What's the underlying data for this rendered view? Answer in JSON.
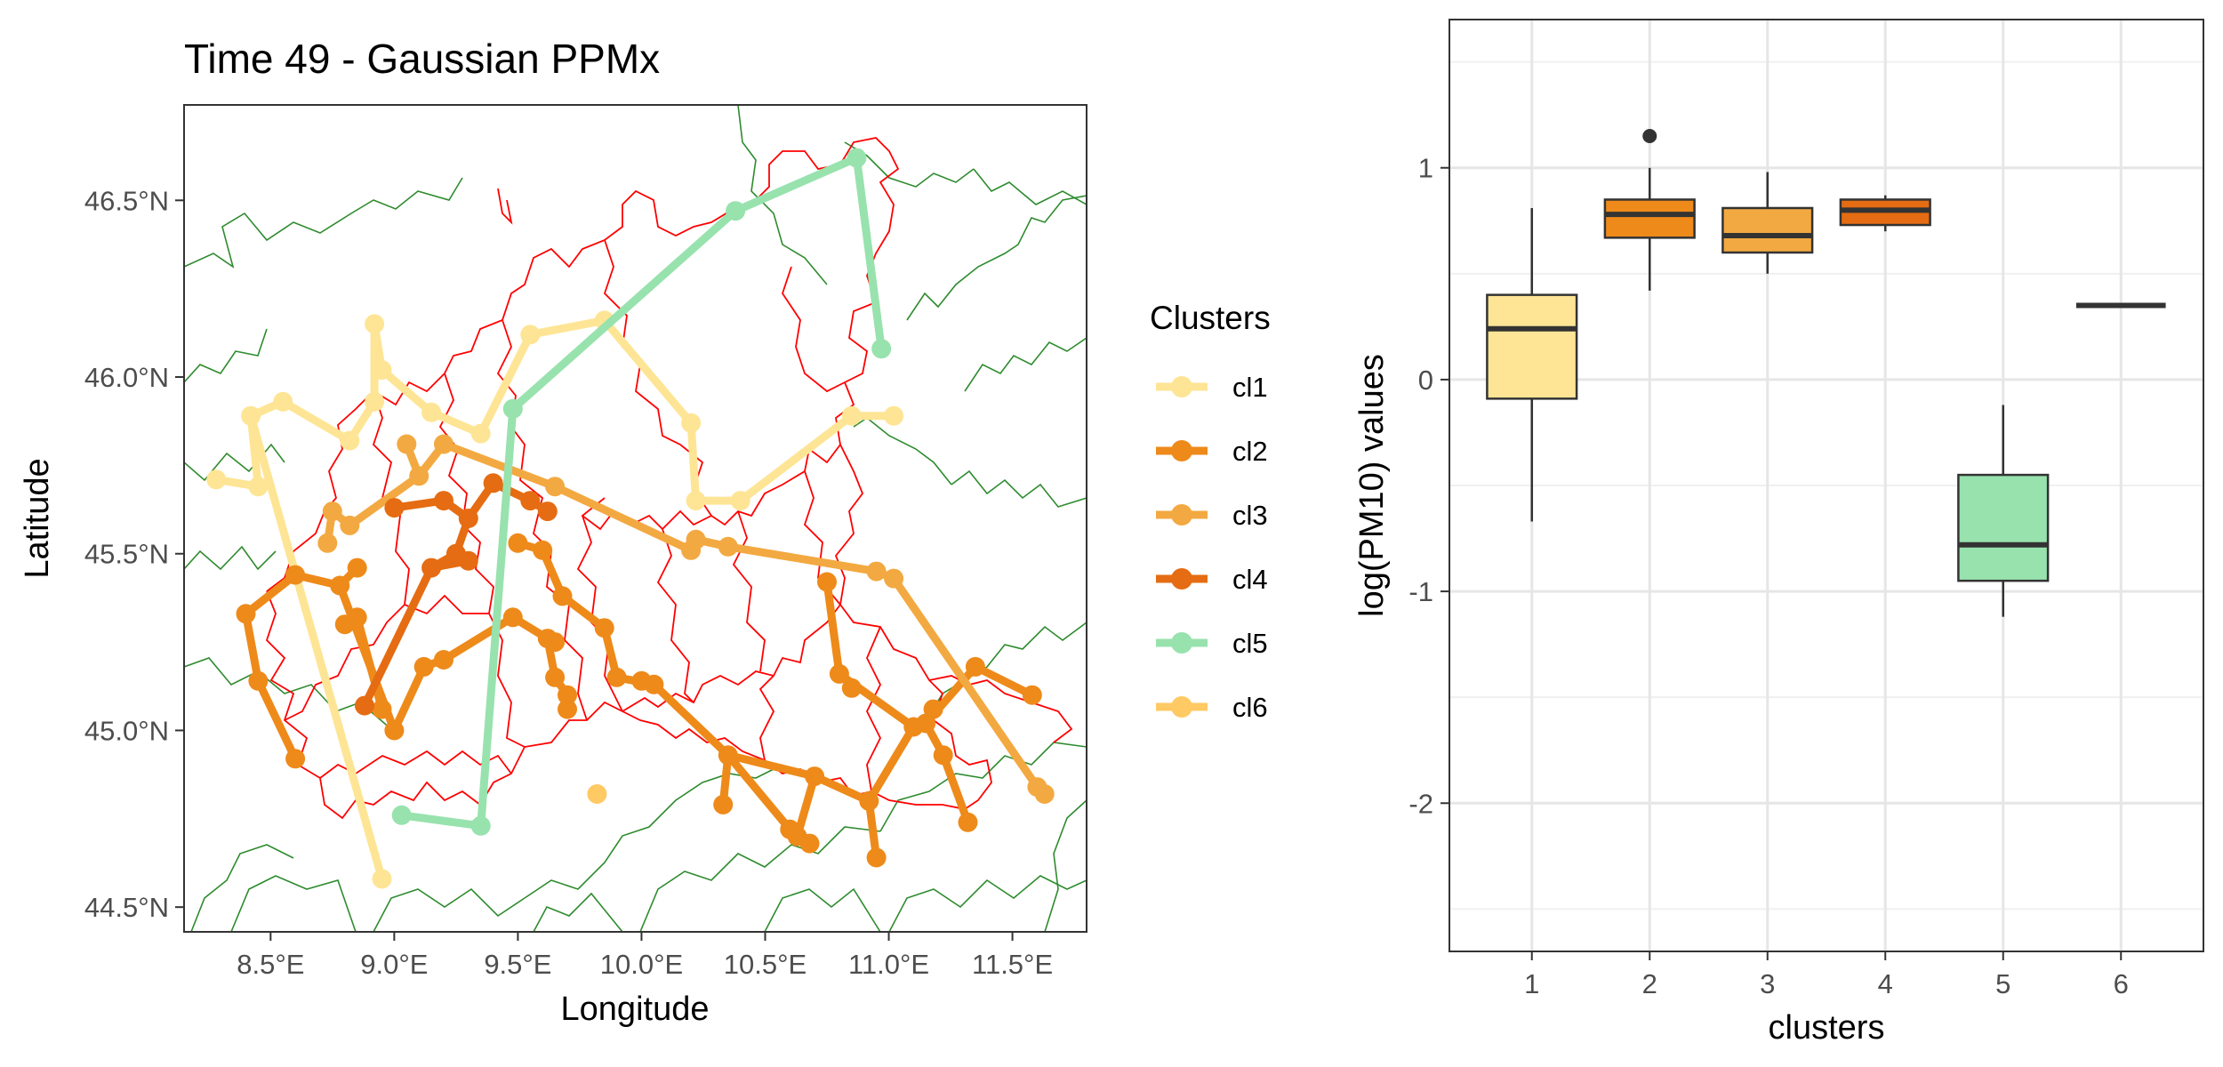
{
  "chart_data": [
    {
      "type": "scatter",
      "title": "Time 49 - Gaussian PPMx",
      "xlabel": "Longitude",
      "ylabel": "Latitude",
      "xlim": [
        8.15,
        11.8
      ],
      "ylim": [
        44.43,
        46.77
      ],
      "x_ticks": [
        8.5,
        9.0,
        9.5,
        10.0,
        10.5,
        11.0,
        11.5
      ],
      "x_tick_labels": [
        "8.5°E",
        "9.0°E",
        "9.5°E",
        "10.0°E",
        "10.5°E",
        "11.0°E",
        "11.5°E"
      ],
      "y_ticks": [
        44.5,
        45.0,
        45.5,
        46.0,
        46.5
      ],
      "y_tick_labels": [
        "44.5°N",
        "45.0°N",
        "45.5°N",
        "46.0°N",
        "46.5°N"
      ],
      "grid": false,
      "legend": {
        "title": "Clusters",
        "position": "right",
        "entries": [
          {
            "label": "cl1",
            "color": "#FEE595"
          },
          {
            "label": "cl2",
            "color": "#EE8A1A"
          },
          {
            "label": "cl3",
            "color": "#F3A941"
          },
          {
            "label": "cl4",
            "color": "#E56C12"
          },
          {
            "label": "cl5",
            "color": "#98E2AE"
          },
          {
            "label": "cl6",
            "color": "#FFC964"
          }
        ]
      },
      "series": [
        {
          "name": "cl1",
          "color": "#FEE595",
          "points": [
            [
              8.28,
              45.71
            ],
            [
              8.42,
              45.89
            ],
            [
              8.45,
              45.69
            ],
            [
              8.55,
              45.93
            ],
            [
              8.82,
              45.82
            ],
            [
              8.92,
              45.93
            ],
            [
              8.92,
              46.15
            ],
            [
              8.95,
              46.02
            ],
            [
              9.15,
              45.9
            ],
            [
              9.35,
              45.84
            ],
            [
              9.55,
              46.12
            ],
            [
              9.85,
              46.16
            ],
            [
              10.2,
              45.87
            ],
            [
              10.22,
              45.65
            ],
            [
              10.4,
              45.65
            ],
            [
              10.85,
              45.89
            ],
            [
              11.02,
              45.89
            ],
            [
              8.95,
              44.58
            ]
          ],
          "paths": [
            [
              [
                8.28,
                45.71
              ],
              [
                8.45,
                45.69
              ],
              [
                8.42,
                45.89
              ],
              [
                8.95,
                44.58
              ]
            ],
            [
              [
                8.42,
                45.89
              ],
              [
                8.55,
                45.93
              ],
              [
                8.82,
                45.82
              ],
              [
                8.92,
                45.93
              ],
              [
                8.92,
                46.15
              ],
              [
                8.95,
                46.02
              ],
              [
                9.15,
                45.9
              ],
              [
                9.35,
                45.84
              ],
              [
                9.55,
                46.12
              ],
              [
                9.85,
                46.16
              ],
              [
                10.2,
                45.87
              ],
              [
                10.22,
                45.65
              ],
              [
                10.4,
                45.65
              ],
              [
                10.85,
                45.89
              ],
              [
                11.02,
                45.89
              ]
            ]
          ]
        },
        {
          "name": "cl2",
          "color": "#EE8A1A",
          "points": [
            [
              8.4,
              45.33
            ],
            [
              8.45,
              45.14
            ],
            [
              8.6,
              44.92
            ],
            [
              8.6,
              45.44
            ],
            [
              8.78,
              45.41
            ],
            [
              8.85,
              45.46
            ],
            [
              8.8,
              45.3
            ],
            [
              8.85,
              45.32
            ],
            [
              8.95,
              45.06
            ],
            [
              9.0,
              45.0
            ],
            [
              9.12,
              45.18
            ],
            [
              9.2,
              45.2
            ],
            [
              9.48,
              45.32
            ],
            [
              9.65,
              45.25
            ],
            [
              9.65,
              45.15
            ],
            [
              9.7,
              45.1
            ],
            [
              9.7,
              45.06
            ],
            [
              9.62,
              45.26
            ],
            [
              9.5,
              45.53
            ],
            [
              9.6,
              45.51
            ],
            [
              9.68,
              45.38
            ],
            [
              9.85,
              45.29
            ],
            [
              9.9,
              45.15
            ],
            [
              10.0,
              45.14
            ],
            [
              10.05,
              45.13
            ],
            [
              10.35,
              44.93
            ],
            [
              10.33,
              44.79
            ],
            [
              10.6,
              44.72
            ],
            [
              10.7,
              44.87
            ],
            [
              10.63,
              44.7
            ],
            [
              10.68,
              44.68
            ],
            [
              10.92,
              44.8
            ],
            [
              10.95,
              44.64
            ],
            [
              11.1,
              45.01
            ],
            [
              11.15,
              45.02
            ],
            [
              11.18,
              45.06
            ],
            [
              11.22,
              44.93
            ],
            [
              11.32,
              44.74
            ],
            [
              11.35,
              45.18
            ],
            [
              11.58,
              45.1
            ],
            [
              10.75,
              45.42
            ],
            [
              10.8,
              45.16
            ],
            [
              10.85,
              45.12
            ]
          ],
          "paths": [
            [
              [
                8.4,
                45.33
              ],
              [
                8.45,
                45.14
              ],
              [
                8.6,
                44.92
              ]
            ],
            [
              [
                8.4,
                45.33
              ],
              [
                8.6,
                45.44
              ],
              [
                8.78,
                45.41
              ],
              [
                8.85,
                45.46
              ]
            ],
            [
              [
                8.8,
                45.3
              ],
              [
                8.85,
                45.32
              ],
              [
                8.95,
                45.06
              ]
            ],
            [
              [
                8.78,
                45.41
              ],
              [
                9.0,
                45.0
              ],
              [
                9.12,
                45.18
              ],
              [
                9.2,
                45.2
              ],
              [
                9.48,
                45.32
              ],
              [
                9.62,
                45.26
              ],
              [
                9.65,
                45.15
              ],
              [
                9.7,
                45.1
              ],
              [
                9.7,
                45.06
              ]
            ],
            [
              [
                9.5,
                45.53
              ],
              [
                9.6,
                45.51
              ],
              [
                9.68,
                45.38
              ],
              [
                9.85,
                45.29
              ],
              [
                9.9,
                45.15
              ],
              [
                10.05,
                45.13
              ],
              [
                10.35,
                44.93
              ],
              [
                10.6,
                44.72
              ]
            ],
            [
              [
                10.35,
                44.93
              ],
              [
                10.33,
                44.79
              ]
            ],
            [
              [
                10.35,
                44.93
              ],
              [
                10.7,
                44.87
              ],
              [
                10.63,
                44.7
              ]
            ],
            [
              [
                10.7,
                44.87
              ],
              [
                10.92,
                44.8
              ],
              [
                10.95,
                44.64
              ]
            ],
            [
              [
                10.92,
                44.8
              ],
              [
                11.1,
                45.01
              ],
              [
                11.15,
                45.02
              ],
              [
                11.22,
                44.93
              ],
              [
                11.32,
                44.74
              ]
            ],
            [
              [
                11.15,
                45.02
              ],
              [
                11.35,
                45.18
              ],
              [
                11.58,
                45.1
              ]
            ],
            [
              [
                10.75,
                45.42
              ],
              [
                10.8,
                45.16
              ],
              [
                11.1,
                45.01
              ]
            ]
          ]
        },
        {
          "name": "cl3",
          "color": "#F3A941",
          "points": [
            [
              8.73,
              45.53
            ],
            [
              8.75,
              45.62
            ],
            [
              8.82,
              45.58
            ],
            [
              9.05,
              45.81
            ],
            [
              9.1,
              45.72
            ],
            [
              9.2,
              45.81
            ],
            [
              9.65,
              45.69
            ],
            [
              10.2,
              45.51
            ],
            [
              10.22,
              45.54
            ],
            [
              10.35,
              45.52
            ],
            [
              10.95,
              45.45
            ],
            [
              11.02,
              45.43
            ],
            [
              11.6,
              44.84
            ],
            [
              11.63,
              44.82
            ]
          ],
          "paths": [
            [
              [
                8.73,
                45.53
              ],
              [
                8.75,
                45.62
              ],
              [
                8.82,
                45.58
              ],
              [
                9.1,
                45.72
              ],
              [
                9.05,
                45.81
              ]
            ],
            [
              [
                9.1,
                45.72
              ],
              [
                9.2,
                45.81
              ],
              [
                9.65,
                45.69
              ],
              [
                10.2,
                45.51
              ],
              [
                10.22,
                45.54
              ],
              [
                10.35,
                45.52
              ],
              [
                10.95,
                45.45
              ],
              [
                11.02,
                45.43
              ],
              [
                11.6,
                44.84
              ],
              [
                11.63,
                44.82
              ]
            ]
          ]
        },
        {
          "name": "cl4",
          "color": "#E56C12",
          "points": [
            [
              8.88,
              45.07
            ],
            [
              9.15,
              45.46
            ],
            [
              9.25,
              45.5
            ],
            [
              9.3,
              45.48
            ],
            [
              9.3,
              45.6
            ],
            [
              9.2,
              45.65
            ],
            [
              9.0,
              45.63
            ],
            [
              9.4,
              45.7
            ],
            [
              9.55,
              45.65
            ],
            [
              9.62,
              45.62
            ]
          ],
          "paths": [
            [
              [
                8.88,
                45.07
              ],
              [
                9.15,
                45.46
              ],
              [
                9.25,
                45.5
              ],
              [
                9.3,
                45.6
              ],
              [
                9.2,
                45.65
              ],
              [
                9.0,
                45.63
              ]
            ],
            [
              [
                9.15,
                45.46
              ],
              [
                9.3,
                45.48
              ]
            ],
            [
              [
                9.3,
                45.6
              ],
              [
                9.4,
                45.7
              ],
              [
                9.55,
                45.65
              ],
              [
                9.62,
                45.62
              ]
            ]
          ]
        },
        {
          "name": "cl5",
          "color": "#98E2AE",
          "points": [
            [
              9.03,
              44.76
            ],
            [
              9.35,
              44.73
            ],
            [
              9.48,
              45.91
            ],
            [
              10.38,
              46.47
            ],
            [
              10.87,
              46.62
            ],
            [
              10.97,
              46.08
            ]
          ],
          "paths": [
            [
              [
                9.03,
                44.76
              ],
              [
                9.35,
                44.73
              ],
              [
                9.48,
                45.91
              ],
              [
                10.38,
                46.47
              ],
              [
                10.87,
                46.62
              ],
              [
                10.97,
                46.08
              ]
            ]
          ]
        },
        {
          "name": "cl6",
          "color": "#FFC964",
          "points": [
            [
              9.82,
              44.82
            ]
          ],
          "paths": []
        }
      ]
    },
    {
      "type": "box",
      "title": "",
      "xlabel": "clusters",
      "ylabel": "log(PM10) values",
      "categories": [
        "1",
        "2",
        "3",
        "4",
        "5",
        "6"
      ],
      "ylim": [
        -2.7,
        1.7
      ],
      "y_ticks": [
        -2,
        -1,
        0,
        1
      ],
      "y_tick_labels": [
        "-2",
        "-1",
        "0",
        "1"
      ],
      "grid": true,
      "boxes": [
        {
          "category": "1",
          "min": -0.67,
          "q1": -0.09,
          "median": 0.24,
          "q3": 0.4,
          "max": 0.81,
          "outliers": [],
          "color": "#FEE595"
        },
        {
          "category": "2",
          "min": 0.42,
          "q1": 0.67,
          "median": 0.78,
          "q3": 0.85,
          "max": 1.0,
          "outliers": [
            1.15
          ],
          "color": "#EE8A1A"
        },
        {
          "category": "3",
          "min": 0.5,
          "q1": 0.6,
          "median": 0.68,
          "q3": 0.81,
          "max": 0.98,
          "outliers": [],
          "color": "#F3A941"
        },
        {
          "category": "4",
          "min": 0.7,
          "q1": 0.73,
          "median": 0.8,
          "q3": 0.85,
          "max": 0.87,
          "outliers": [],
          "color": "#E56C12"
        },
        {
          "category": "5",
          "min": -1.12,
          "q1": -0.95,
          "median": -0.78,
          "q3": -0.45,
          "max": -0.12,
          "outliers": [],
          "color": "#98E2AE"
        },
        {
          "category": "6",
          "min": 0.35,
          "q1": 0.35,
          "median": 0.35,
          "q3": 0.35,
          "max": 0.35,
          "outliers": [],
          "color": "#FFC964"
        }
      ]
    }
  ],
  "boundary_colors": {
    "region": "#FF0000",
    "neighbors": "#2E8B2E"
  }
}
